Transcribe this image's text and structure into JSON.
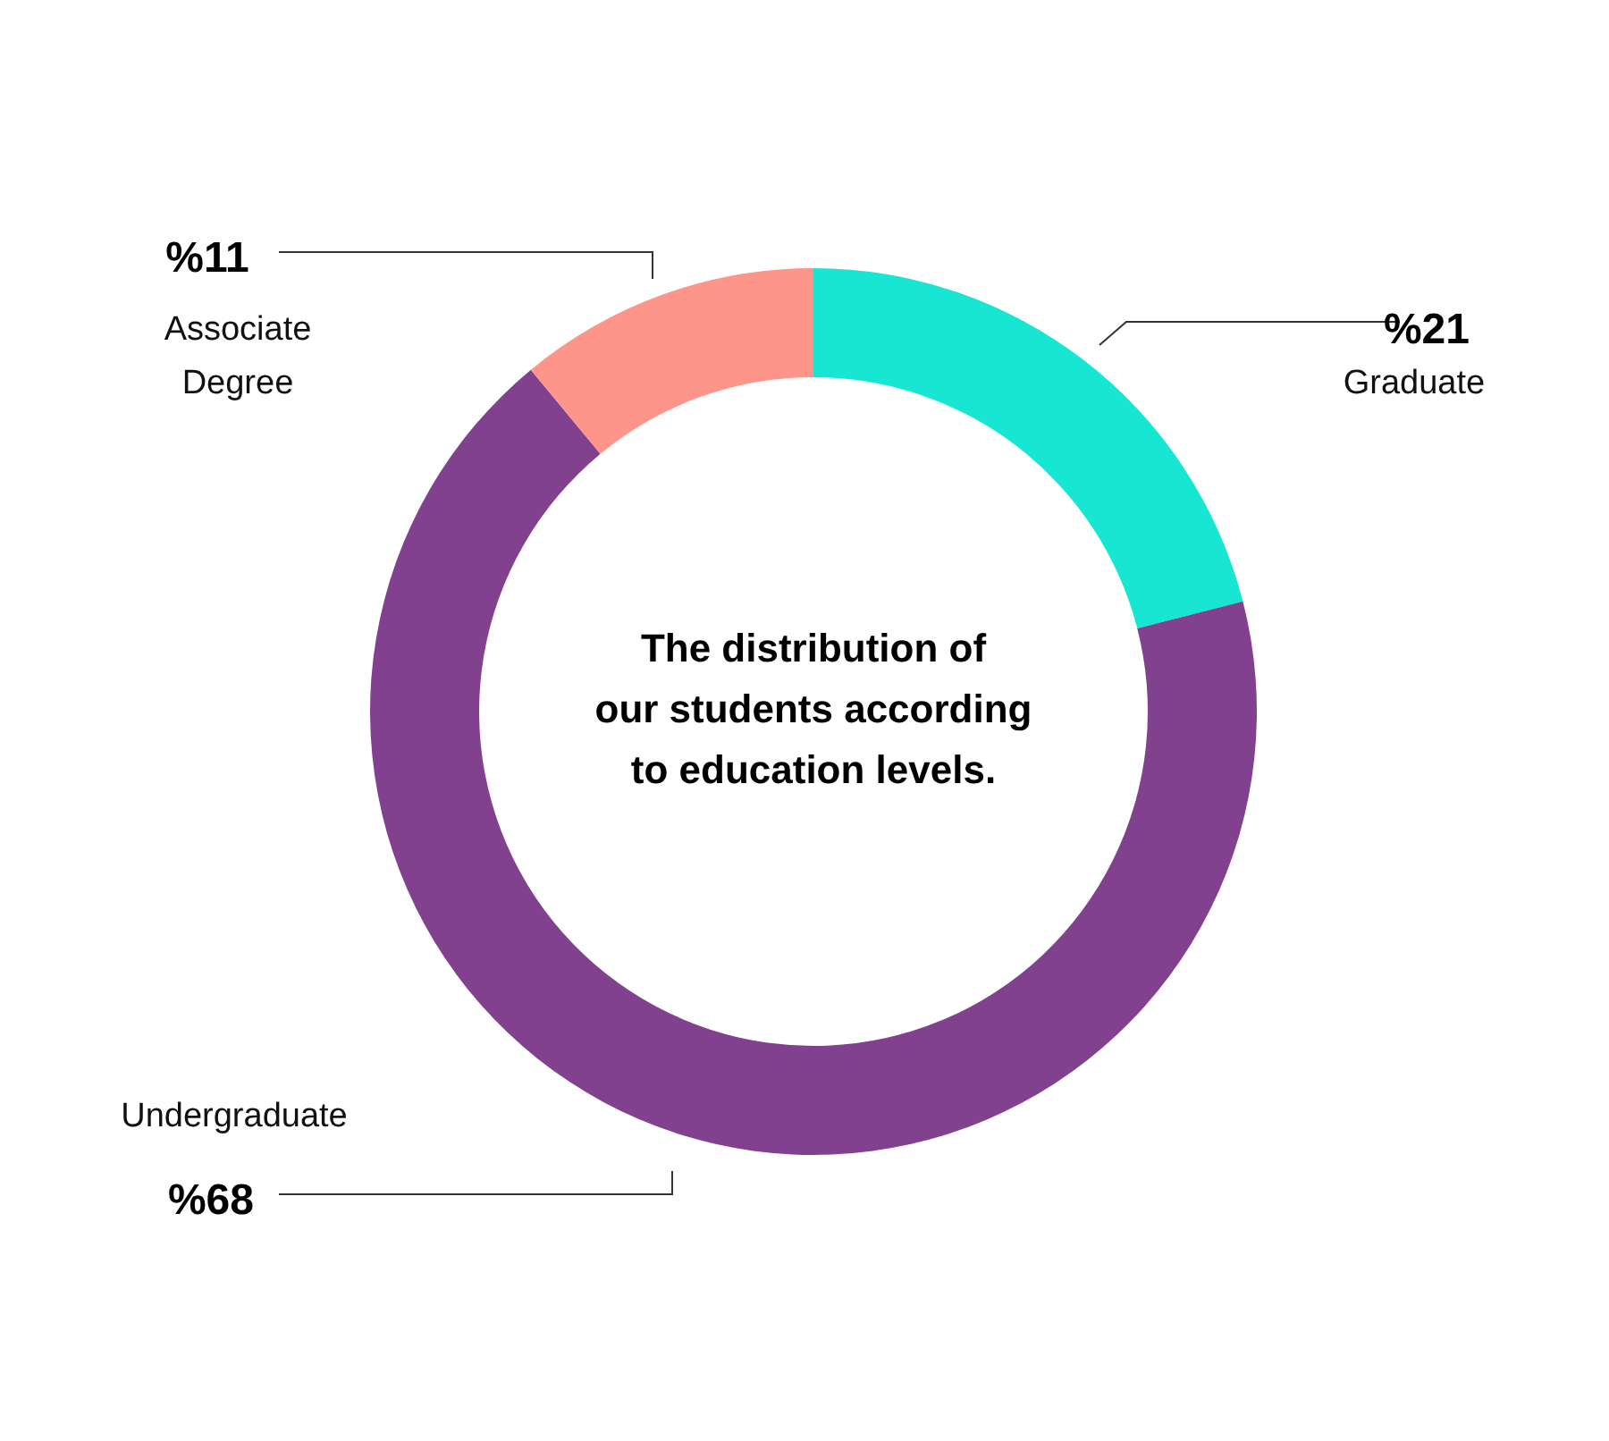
{
  "chart_data": {
    "type": "donut",
    "title": "The distribution of our students according to education levels.",
    "categories": [
      "Graduate",
      "Undergraduate",
      "Associate Degree"
    ],
    "values": [
      21,
      68,
      11
    ],
    "colors": [
      "#16e6d2",
      "#81418e",
      "#fe958a"
    ],
    "value_labels": [
      "%21",
      "%68",
      "%11"
    ]
  }
}
